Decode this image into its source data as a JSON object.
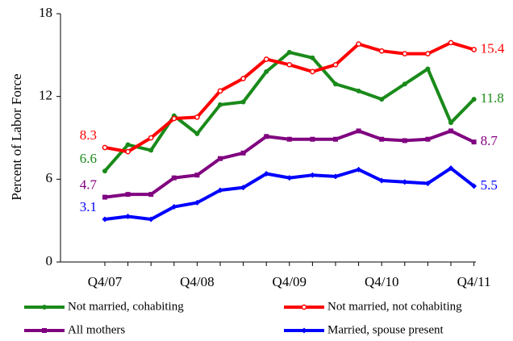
{
  "chart_data": {
    "type": "line",
    "y_label": "Percent of Labor Force",
    "categories": [
      "Q4/07",
      null,
      null,
      null,
      "Q4/08",
      null,
      null,
      null,
      "Q4/09",
      null,
      null,
      null,
      "Q4/10",
      null,
      null,
      null,
      "Q4/11"
    ],
    "ylim": [
      0,
      18
    ],
    "yticks": [
      0,
      6,
      12,
      18
    ],
    "grid": false,
    "series": [
      {
        "name": "Not married, cohabiting",
        "color": "#1a8a1a",
        "marker": "circle",
        "values": [
          6.6,
          8.5,
          8.1,
          10.6,
          9.3,
          11.4,
          11.6,
          13.8,
          15.2,
          14.8,
          12.9,
          12.4,
          11.8,
          12.9,
          14.0,
          10.1,
          11.8
        ]
      },
      {
        "name": "Not married, not cohabiting",
        "color": "#ff0000",
        "marker": "open-circle",
        "values": [
          8.3,
          8.0,
          9.0,
          10.4,
          10.5,
          12.4,
          13.3,
          14.7,
          14.3,
          13.8,
          14.3,
          15.8,
          15.3,
          15.1,
          15.1,
          15.9,
          15.4
        ]
      },
      {
        "name": "All mothers",
        "color": "#800080",
        "marker": "square",
        "values": [
          4.7,
          4.9,
          4.9,
          6.1,
          6.3,
          7.5,
          7.9,
          9.1,
          8.9,
          8.9,
          8.9,
          9.5,
          8.9,
          8.8,
          8.9,
          9.5,
          8.7
        ]
      },
      {
        "name": "Married, spouse present",
        "color": "#0000ff",
        "marker": "diamond",
        "values": [
          3.1,
          3.3,
          3.1,
          4.0,
          4.3,
          5.2,
          5.4,
          6.4,
          6.1,
          6.3,
          6.2,
          6.7,
          5.9,
          5.8,
          5.7,
          6.8,
          5.5
        ]
      }
    ]
  }
}
